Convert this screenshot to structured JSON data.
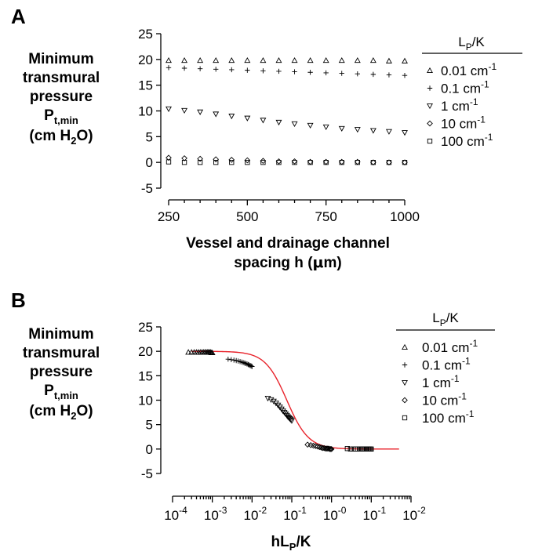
{
  "chart_data": [
    {
      "panel": "A",
      "type": "scatter",
      "ylabel": [
        "Minimum",
        "transmural",
        "pressure",
        "P",
        "t,min",
        "(cm H",
        "2",
        "O)"
      ],
      "xlabel": [
        "Vessel and drainage channel",
        "spacing h (",
        "μ",
        "m)"
      ],
      "xlim": [
        250,
        1000
      ],
      "ylim": [
        -5,
        25
      ],
      "xticks": [
        250,
        500,
        750,
        1000
      ],
      "yticks": [
        -5,
        0,
        5,
        10,
        15,
        20,
        25
      ],
      "legend_title": [
        "L",
        "P",
        "/K"
      ],
      "legend_position": "right",
      "x": [
        250,
        300,
        350,
        400,
        450,
        500,
        550,
        600,
        650,
        700,
        750,
        800,
        850,
        900,
        950,
        1000
      ],
      "series": [
        {
          "name": "0.01 cm",
          "sup": "-1",
          "marker": "triangle-up",
          "values": [
            19.8,
            19.8,
            19.8,
            19.8,
            19.8,
            19.8,
            19.8,
            19.8,
            19.8,
            19.8,
            19.8,
            19.8,
            19.8,
            19.8,
            19.7,
            19.7
          ]
        },
        {
          "name": "0.1 cm",
          "sup": "-1",
          "marker": "plus",
          "values": [
            18.4,
            18.3,
            18.2,
            18.1,
            18.0,
            17.9,
            17.8,
            17.7,
            17.6,
            17.5,
            17.4,
            17.3,
            17.2,
            17.1,
            17.0,
            16.9
          ]
        },
        {
          "name": "1 cm",
          "sup": "-1",
          "marker": "triangle-down",
          "values": [
            10.4,
            10.1,
            9.8,
            9.4,
            9.0,
            8.6,
            8.2,
            7.8,
            7.5,
            7.2,
            6.9,
            6.6,
            6.4,
            6.2,
            6.0,
            5.8
          ]
        },
        {
          "name": "10 cm",
          "sup": "-1",
          "marker": "diamond",
          "values": [
            0.9,
            0.8,
            0.7,
            0.6,
            0.5,
            0.4,
            0.3,
            0.2,
            0.2,
            0.1,
            0.1,
            0.1,
            0.1,
            0.0,
            0.0,
            0.0
          ]
        },
        {
          "name": "100 cm",
          "sup": "-1",
          "marker": "square",
          "values": [
            0.1,
            0.0,
            0.0,
            0.0,
            0.0,
            0.0,
            0.0,
            0.0,
            0.0,
            0.0,
            0.0,
            0.0,
            0.0,
            0.0,
            0.0,
            0.0
          ]
        }
      ]
    },
    {
      "panel": "B",
      "type": "scatter",
      "scale_x": "log",
      "ylabel": [
        "Minimum",
        "transmural",
        "pressure",
        "P",
        "t,min",
        "(cm H",
        "2",
        "O)"
      ],
      "xlabel": [
        "hL",
        "P",
        "/K"
      ],
      "xlim": [
        0.0001,
        100
      ],
      "ylim": [
        -5,
        25
      ],
      "yticks": [
        -5,
        0,
        5,
        10,
        15,
        20,
        25
      ],
      "xtick_labels": [
        {
          "base": "10",
          "exp": "-4"
        },
        {
          "base": "10",
          "exp": "-3"
        },
        {
          "base": "10",
          "exp": "-2"
        },
        {
          "base": "10",
          "exp": "-1"
        },
        {
          "base": "10",
          "exp": "-0"
        },
        {
          "base": "10",
          "exp": "-1"
        },
        {
          "base": "10",
          "exp": "-2"
        }
      ],
      "legend_title": [
        "L",
        "P",
        "/K"
      ],
      "legend_position": "right",
      "fit_curve": {
        "color": "#e8232b",
        "formula": "20 / (1 + (x / 0.075)^1.6)"
      },
      "series": [
        {
          "name": "0.01 cm",
          "sup": "-1",
          "marker": "triangle-up",
          "x": [
            0.00025,
            0.0003,
            0.00035,
            0.0004,
            0.00045,
            0.0005,
            0.00055,
            0.0006,
            0.00065,
            0.0007,
            0.00075,
            0.0008,
            0.00085,
            0.0009,
            0.00095,
            0.001
          ],
          "values": [
            19.8,
            19.8,
            19.8,
            19.8,
            19.8,
            19.8,
            19.8,
            19.8,
            19.8,
            19.8,
            19.8,
            19.8,
            19.8,
            19.8,
            19.7,
            19.7
          ]
        },
        {
          "name": "0.1 cm",
          "sup": "-1",
          "marker": "plus",
          "x": [
            0.0025,
            0.003,
            0.0035,
            0.004,
            0.0045,
            0.005,
            0.0055,
            0.006,
            0.0065,
            0.007,
            0.0075,
            0.008,
            0.0085,
            0.009,
            0.0095,
            0.01
          ],
          "values": [
            18.4,
            18.3,
            18.2,
            18.1,
            18.0,
            17.9,
            17.8,
            17.7,
            17.6,
            17.5,
            17.4,
            17.3,
            17.2,
            17.1,
            17.0,
            16.9
          ]
        },
        {
          "name": "1 cm",
          "sup": "-1",
          "marker": "triangle-down",
          "x": [
            0.025,
            0.03,
            0.035,
            0.04,
            0.045,
            0.05,
            0.055,
            0.06,
            0.065,
            0.07,
            0.075,
            0.08,
            0.085,
            0.09,
            0.095,
            0.1
          ],
          "values": [
            10.4,
            10.1,
            9.8,
            9.4,
            9.0,
            8.6,
            8.2,
            7.8,
            7.5,
            7.2,
            6.9,
            6.6,
            6.4,
            6.2,
            6.0,
            5.8
          ]
        },
        {
          "name": "10 cm",
          "sup": "-1",
          "marker": "diamond",
          "x": [
            0.25,
            0.3,
            0.35,
            0.4,
            0.45,
            0.5,
            0.55,
            0.6,
            0.65,
            0.7,
            0.75,
            0.8,
            0.85,
            0.9,
            0.95,
            1.0
          ],
          "values": [
            0.9,
            0.8,
            0.7,
            0.6,
            0.5,
            0.4,
            0.3,
            0.2,
            0.2,
            0.1,
            0.1,
            0.1,
            0.1,
            0.0,
            0.0,
            0.0
          ]
        },
        {
          "name": "100 cm",
          "sup": "-1",
          "marker": "square",
          "x": [
            2.5,
            3.0,
            3.5,
            4.0,
            4.5,
            5.0,
            5.5,
            6.0,
            6.5,
            7.0,
            7.5,
            8.0,
            8.5,
            9.0,
            9.5,
            10.0
          ],
          "values": [
            0.1,
            0.0,
            0.0,
            0.0,
            0.0,
            0.0,
            0.0,
            0.0,
            0.0,
            0.0,
            0.0,
            0.0,
            0.0,
            0.0,
            0.0,
            0.0
          ]
        }
      ]
    }
  ]
}
